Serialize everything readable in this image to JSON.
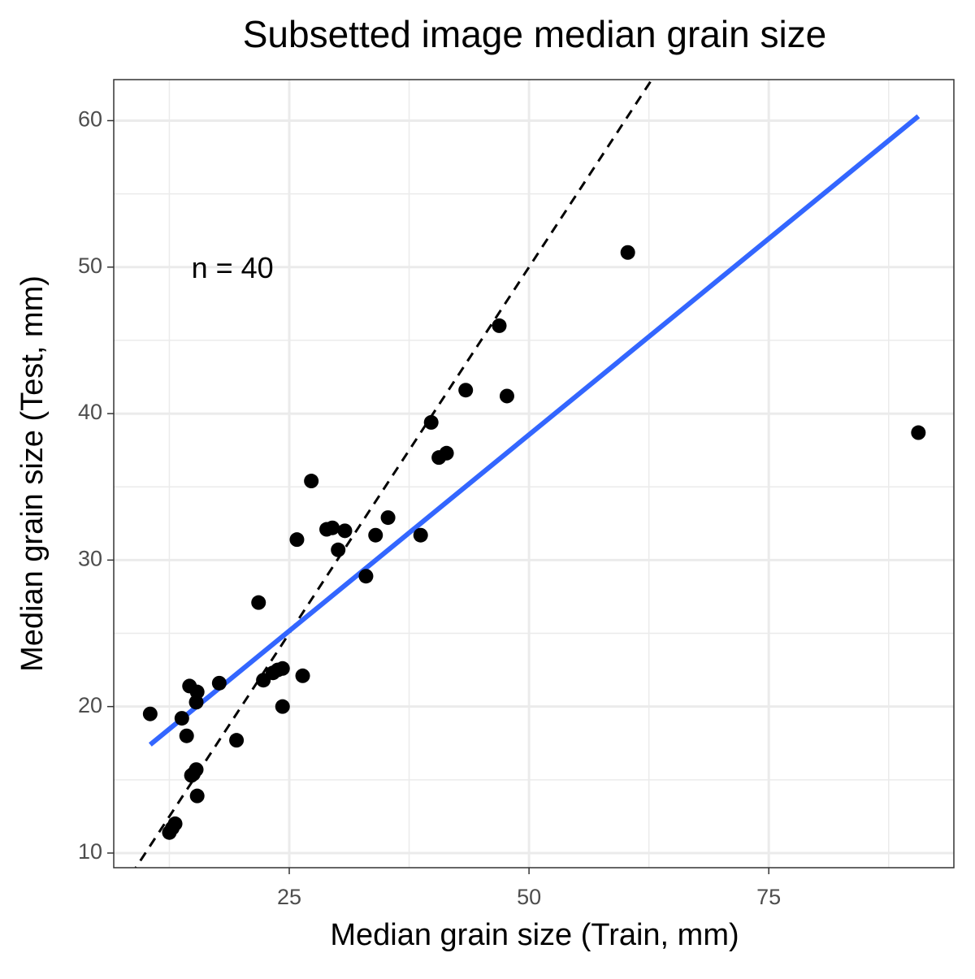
{
  "chart_data": {
    "type": "scatter",
    "title": "Subsetted image median grain size",
    "x_label": "Median grain size (Train, mm)",
    "y_label": "Median grain size (Test, mm)",
    "annotation": {
      "text": "n = 40",
      "x": 14.8,
      "y": 49.8
    },
    "xlim": [
      6.7,
      94.3
    ],
    "ylim": [
      9.0,
      62.8
    ],
    "xticks": [
      25,
      50,
      75
    ],
    "yticks": [
      10,
      20,
      30,
      40,
      50,
      60
    ],
    "x_minor_grid": [
      12.5,
      37.5,
      62.5,
      87.5
    ],
    "y_minor_grid": [
      15,
      25,
      35,
      45,
      55
    ],
    "grid": true,
    "series": [
      {
        "color": "#000000",
        "x": [
          10.5,
          13.8,
          14.3,
          14.6,
          15.3,
          15.4,
          17.7,
          19.5,
          21.8,
          22.3,
          23.3,
          23.8,
          24.3,
          24.3,
          25.8,
          26.4,
          27.3,
          28.9,
          29.5,
          30.1,
          30.8,
          33.0,
          34.0,
          35.3,
          38.7,
          39.8,
          40.6,
          41.4,
          43.4,
          46.9,
          47.7,
          60.3,
          90.6,
          12.5,
          12.8,
          13.1,
          14.8,
          15.0,
          15.3,
          15.4
        ],
        "values": [
          19.5,
          19.2,
          18.0,
          21.4,
          20.3,
          21.0,
          21.6,
          17.7,
          27.1,
          21.8,
          22.3,
          22.5,
          22.6,
          20.0,
          31.4,
          22.1,
          35.4,
          32.1,
          32.2,
          30.7,
          32.0,
          28.9,
          31.7,
          32.9,
          31.7,
          39.4,
          37.0,
          37.3,
          41.6,
          46.0,
          41.2,
          51.0,
          38.7,
          11.4,
          11.7,
          12.0,
          15.3,
          15.4,
          15.7,
          13.9
        ]
      }
    ],
    "fit_line": {
      "color": "#3366ff",
      "x": [
        10.5,
        90.6
      ],
      "y": [
        17.4,
        60.3
      ]
    },
    "reference_line": {
      "color": "#000000",
      "dashed": true,
      "x": [
        8.5,
        62.8
      ],
      "y": [
        8.5,
        62.8
      ]
    }
  }
}
